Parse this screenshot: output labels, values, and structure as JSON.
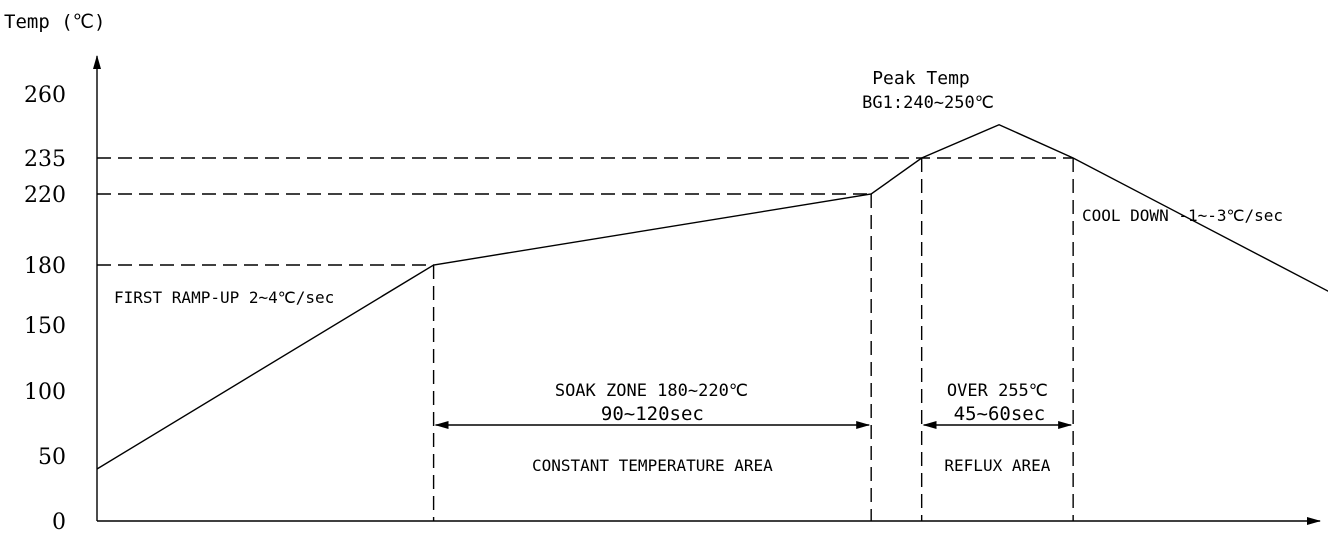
{
  "chart_data": {
    "type": "line",
    "title": "",
    "ylabel": "Temp (℃)",
    "xlabel": "",
    "yticks": [
      0,
      50,
      100,
      150,
      180,
      220,
      235,
      260
    ],
    "grid": false,
    "series": [
      {
        "points": [
          {
            "x": 0,
            "y": 40
          },
          {
            "x": 100,
            "y": 180
          },
          {
            "x": 230,
            "y": 220
          },
          {
            "x": 245,
            "y": 235
          },
          {
            "x": 268,
            "y": 248
          },
          {
            "x": 290,
            "y": 235
          },
          {
            "x": 400,
            "y": 130
          }
        ]
      }
    ],
    "reference_lines": {
      "horizontal": [
        180,
        220,
        235
      ],
      "vertical": [
        100,
        230,
        245,
        290
      ]
    },
    "spans": [
      {
        "from": 100,
        "to": 230,
        "label_top": "SOAK ZONE 180~220℃",
        "label_mid": "90~120sec",
        "label_bottom": "CONSTANT TEMPERATURE AREA"
      },
      {
        "from": 245,
        "to": 290,
        "label_top": "OVER 255℃",
        "label_mid": "45~60sec",
        "label_bottom": "REFLUX AREA"
      }
    ],
    "annotations": {
      "peak_title": "Peak Temp",
      "peak_range": "BG1:240~250℃",
      "ramp_up": "FIRST RAMP-UP 2~4℃/sec",
      "cool_down": "COOL DOWN -1~-3℃/sec"
    }
  }
}
